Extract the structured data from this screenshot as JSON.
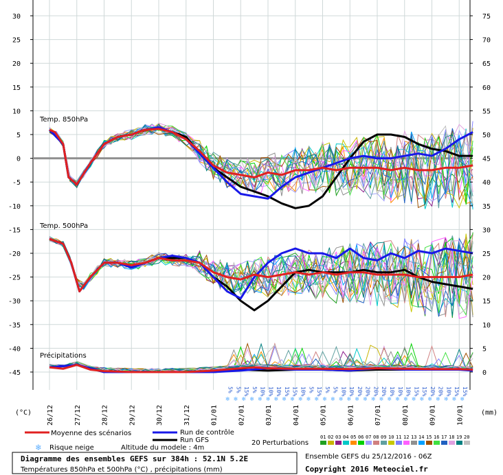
{
  "chart_data": {
    "type": "line",
    "x_dates": [
      "26/12",
      "27/12",
      "28/12",
      "29/12",
      "30/12",
      "31/12",
      "01/01",
      "02/01",
      "03/01",
      "04/01",
      "05/01",
      "06/01",
      "07/01",
      "08/01",
      "09/01",
      "10/01"
    ],
    "left_axis": {
      "unit": "(°C)",
      "ticks": [
        30,
        25,
        20,
        15,
        10,
        5,
        0,
        -5,
        -10,
        -15,
        -20,
        -25,
        -30,
        -35,
        -40,
        -45
      ],
      "ylim": [
        -45,
        30
      ]
    },
    "right_axis": {
      "unit": "(mm)",
      "ticks": [
        75,
        70,
        65,
        60,
        55,
        50,
        45,
        40,
        35,
        30,
        25,
        20,
        15,
        10,
        5,
        0
      ],
      "ylim": [
        0,
        75
      ]
    },
    "panels": {
      "t850": "Temp. 850hPa",
      "t500": "Temp. 500hPa",
      "precip": "Précipitations"
    },
    "snow_risk_percents": [
      "5%",
      "5%",
      "15%",
      "5%",
      "10%",
      "10%",
      "10%",
      "15%",
      "15%",
      "10%",
      "5%",
      "15%",
      "5%",
      "5%",
      "10%",
      "10%",
      "20%",
      "20%",
      "20%",
      "20%",
      "10%",
      "10%",
      "10%",
      "15%",
      "15%",
      "20%",
      "20%",
      "10%",
      "15%",
      "15%"
    ],
    "series": [
      {
        "name": "Moyenne des scénarios",
        "color": "#e02020",
        "t850": [
          [
            0,
            6
          ],
          [
            0.2,
            5.5
          ],
          [
            0.5,
            3
          ],
          [
            0.7,
            -4
          ],
          [
            1,
            -5.5
          ],
          [
            1.5,
            -1
          ],
          [
            2,
            3
          ],
          [
            2.5,
            4.5
          ],
          [
            3,
            5
          ],
          [
            3.5,
            6
          ],
          [
            4,
            6.2
          ],
          [
            4.5,
            5.5
          ],
          [
            5,
            4
          ],
          [
            5.5,
            1.5
          ],
          [
            6,
            -1.5
          ],
          [
            6.5,
            -3
          ],
          [
            7,
            -3.5
          ],
          [
            7.5,
            -4
          ],
          [
            8,
            -3
          ],
          [
            8.5,
            -3.5
          ],
          [
            9,
            -2.5
          ],
          [
            9.5,
            -2.5
          ],
          [
            10,
            -2
          ],
          [
            10.5,
            -2.5
          ],
          [
            11,
            -2
          ],
          [
            11.5,
            -2
          ],
          [
            12,
            -2
          ],
          [
            12.5,
            -2.5
          ],
          [
            13,
            -2
          ],
          [
            13.5,
            -2.5
          ],
          [
            14,
            -2.5
          ],
          [
            14.5,
            -2
          ],
          [
            15,
            -2
          ],
          [
            15.5,
            -1.5
          ]
        ],
        "t500": [
          [
            0,
            -17
          ],
          [
            0.5,
            -18
          ],
          [
            0.8,
            -22
          ],
          [
            1.1,
            -28
          ],
          [
            1.5,
            -25
          ],
          [
            2,
            -22
          ],
          [
            2.5,
            -22
          ],
          [
            3,
            -22.5
          ],
          [
            3.5,
            -22
          ],
          [
            4,
            -21
          ],
          [
            4.5,
            -21.5
          ],
          [
            5,
            -21.5
          ],
          [
            5.5,
            -22
          ],
          [
            6,
            -24
          ],
          [
            6.5,
            -25
          ],
          [
            7,
            -25.5
          ],
          [
            7.5,
            -24.5
          ],
          [
            8,
            -25
          ],
          [
            8.5,
            -24.5
          ],
          [
            9,
            -24
          ],
          [
            9.5,
            -24.5
          ],
          [
            10,
            -24
          ],
          [
            10.5,
            -24.5
          ],
          [
            11,
            -24
          ],
          [
            11.5,
            -24
          ],
          [
            12,
            -24.5
          ],
          [
            12.5,
            -24.5
          ],
          [
            13,
            -24.5
          ],
          [
            13.5,
            -25
          ],
          [
            14,
            -25
          ],
          [
            14.5,
            -25
          ],
          [
            15,
            -25
          ],
          [
            15.5,
            -24.5
          ]
        ],
        "precip": [
          [
            0,
            1
          ],
          [
            0.5,
            0.7
          ],
          [
            1,
            1.5
          ],
          [
            1.5,
            0.5
          ],
          [
            2,
            0.2
          ],
          [
            3,
            0
          ],
          [
            4,
            0
          ],
          [
            5,
            0
          ],
          [
            6,
            0.3
          ],
          [
            7,
            0.8
          ],
          [
            7.5,
            1
          ],
          [
            8,
            0.8
          ],
          [
            9,
            0.7
          ],
          [
            10,
            0.7
          ],
          [
            11,
            0.6
          ],
          [
            12,
            0.8
          ],
          [
            13,
            0.7
          ],
          [
            14,
            0.6
          ],
          [
            15,
            0.6
          ],
          [
            15.5,
            0.5
          ]
        ]
      },
      {
        "name": "Run de contrôle",
        "color": "#1818e8",
        "t850": [
          [
            0,
            6
          ],
          [
            0.5,
            3
          ],
          [
            0.7,
            -4
          ],
          [
            1,
            -5.5
          ],
          [
            1.5,
            -1
          ],
          [
            2,
            3
          ],
          [
            2.5,
            4.5
          ],
          [
            3,
            5
          ],
          [
            3.5,
            6
          ],
          [
            4,
            6.5
          ],
          [
            4.5,
            5.5
          ],
          [
            5,
            4
          ],
          [
            5.5,
            1
          ],
          [
            6,
            -2
          ],
          [
            6.5,
            -5
          ],
          [
            7,
            -7.5
          ],
          [
            7.5,
            -8
          ],
          [
            8,
            -8.5
          ],
          [
            8.5,
            -6
          ],
          [
            9,
            -4
          ],
          [
            9.5,
            -3
          ],
          [
            10,
            -2
          ],
          [
            10.5,
            -1
          ],
          [
            11,
            0
          ],
          [
            11.5,
            0.5
          ],
          [
            12,
            0
          ],
          [
            12.5,
            0
          ],
          [
            13,
            0.5
          ],
          [
            13.5,
            1
          ],
          [
            14,
            0.5
          ],
          [
            14.5,
            2
          ],
          [
            15,
            4
          ],
          [
            15.5,
            5.5
          ]
        ],
        "t500": [
          [
            0,
            -17
          ],
          [
            0.5,
            -18
          ],
          [
            0.8,
            -22
          ],
          [
            1.1,
            -28
          ],
          [
            1.5,
            -25
          ],
          [
            2,
            -22
          ],
          [
            2.5,
            -22
          ],
          [
            3,
            -23
          ],
          [
            3.5,
            -22
          ],
          [
            4,
            -21
          ],
          [
            4.5,
            -20.5
          ],
          [
            5,
            -21
          ],
          [
            5.5,
            -22
          ],
          [
            6,
            -25
          ],
          [
            6.5,
            -28
          ],
          [
            7,
            -29.5
          ],
          [
            7.5,
            -25
          ],
          [
            8,
            -22
          ],
          [
            8.5,
            -20
          ],
          [
            9,
            -19
          ],
          [
            9.5,
            -20
          ],
          [
            10,
            -20
          ],
          [
            10.5,
            -21
          ],
          [
            11,
            -19
          ],
          [
            11.5,
            -21
          ],
          [
            12,
            -21.5
          ],
          [
            12.5,
            -20
          ],
          [
            13,
            -21
          ],
          [
            13.5,
            -19.5
          ],
          [
            14,
            -20
          ],
          [
            14.5,
            -19
          ],
          [
            15,
            -19.5
          ],
          [
            15.5,
            -20
          ]
        ],
        "precip": [
          [
            0,
            1
          ],
          [
            1,
            1.5
          ],
          [
            2,
            0
          ],
          [
            6,
            0
          ],
          [
            7,
            0.3
          ],
          [
            8,
            0.8
          ],
          [
            9,
            0.5
          ],
          [
            10,
            0.5
          ],
          [
            11,
            0.3
          ],
          [
            12,
            0.8
          ],
          [
            13,
            0.5
          ],
          [
            14,
            0.5
          ],
          [
            15,
            0.5
          ],
          [
            15.5,
            0.3
          ]
        ]
      },
      {
        "name": "Run GFS",
        "color": "#000000",
        "t850": [
          [
            0,
            6
          ],
          [
            0.5,
            3
          ],
          [
            0.7,
            -4
          ],
          [
            1,
            -5.5
          ],
          [
            1.5,
            -1
          ],
          [
            2,
            3
          ],
          [
            2.5,
            4.5
          ],
          [
            3,
            5
          ],
          [
            3.5,
            6
          ],
          [
            4,
            6.3
          ],
          [
            4.5,
            5.5
          ],
          [
            5,
            4.5
          ],
          [
            5.5,
            1
          ],
          [
            6,
            -2
          ],
          [
            6.5,
            -4
          ],
          [
            7,
            -6
          ],
          [
            7.5,
            -7
          ],
          [
            8,
            -8
          ],
          [
            8.5,
            -9.5
          ],
          [
            9,
            -10.5
          ],
          [
            9.5,
            -10
          ],
          [
            10,
            -8
          ],
          [
            10.5,
            -4
          ],
          [
            11,
            0
          ],
          [
            11.5,
            3.5
          ],
          [
            12,
            5
          ],
          [
            12.5,
            5
          ],
          [
            13,
            4.5
          ],
          [
            13.5,
            3
          ],
          [
            14,
            2
          ],
          [
            14.5,
            1.5
          ],
          [
            15,
            0.5
          ],
          [
            15.5,
            0.5
          ]
        ],
        "t500": [
          [
            0,
            -17
          ],
          [
            0.5,
            -18
          ],
          [
            0.8,
            -22
          ],
          [
            1.1,
            -28
          ],
          [
            1.5,
            -25
          ],
          [
            2,
            -22
          ],
          [
            2.5,
            -22
          ],
          [
            3,
            -23
          ],
          [
            3.5,
            -22
          ],
          [
            4,
            -21
          ],
          [
            4.5,
            -21
          ],
          [
            5,
            -21
          ],
          [
            5.5,
            -22
          ],
          [
            6,
            -25
          ],
          [
            6.5,
            -27
          ],
          [
            7,
            -30
          ],
          [
            7.5,
            -32
          ],
          [
            8,
            -30
          ],
          [
            8.5,
            -27
          ],
          [
            9,
            -24
          ],
          [
            9.5,
            -23.5
          ],
          [
            10,
            -24
          ],
          [
            10.5,
            -24
          ],
          [
            11,
            -24
          ],
          [
            11.5,
            -23.5
          ],
          [
            12,
            -24
          ],
          [
            12.5,
            -24
          ],
          [
            13,
            -23.5
          ],
          [
            13.5,
            -25
          ],
          [
            14,
            -26
          ],
          [
            14.5,
            -26.5
          ],
          [
            15,
            -27
          ],
          [
            15.5,
            -27.5
          ]
        ],
        "precip": [
          [
            0,
            1
          ],
          [
            1,
            1.5
          ],
          [
            2,
            0
          ],
          [
            6,
            0
          ],
          [
            7,
            0.5
          ],
          [
            8,
            0.3
          ],
          [
            9,
            0.5
          ],
          [
            10,
            0.5
          ],
          [
            11,
            0.3
          ],
          [
            12,
            0.5
          ],
          [
            13,
            0.5
          ],
          [
            14,
            0.5
          ],
          [
            15,
            0.5
          ]
        ]
      }
    ],
    "perturbations": {
      "label": "20 Perturbations",
      "ids": [
        "01",
        "02",
        "03",
        "04",
        "05",
        "06",
        "07",
        "08",
        "09",
        "10",
        "11",
        "12",
        "13",
        "14",
        "15",
        "16",
        "17",
        "18",
        "19",
        "20"
      ],
      "colors": [
        "#20a020",
        "#c8b400",
        "#8c1c8c",
        "#00c8c8",
        "#ff8c00",
        "#00d000",
        "#a0a0ff",
        "#d08080",
        "#60a0a0",
        "#c8c800",
        "#8080ff",
        "#ff60ff",
        "#909090",
        "#00a0ff",
        "#a05000",
        "#40e040",
        "#2060c0",
        "#e0a0e0",
        "#008080",
        "#c0c0c0"
      ]
    }
  },
  "legend": {
    "mean": "Moyenne des scénarios",
    "control": "Run de contrôle",
    "gfs": "Run GFS",
    "perturbations": "20 Perturbations",
    "snow_risk": "Risque neige",
    "model_altitude": "Altitude du modele : 4m"
  },
  "footer": {
    "title": "Diagramme des ensembles GEFS sur 384h : 52.1N 5.2E",
    "subtitle": "Températures 850hPa et 500hPa (°C) , précipitations (mm)",
    "run": "Ensemble GEFS du 25/12/2016 - 06Z",
    "copyright": "Copyright 2016 Meteociel.fr"
  },
  "colors": {
    "grid": "#cfd8d8",
    "zero_line": "#909090",
    "snow_text": "#3060d0",
    "snow_icon": "#60b0ff"
  }
}
